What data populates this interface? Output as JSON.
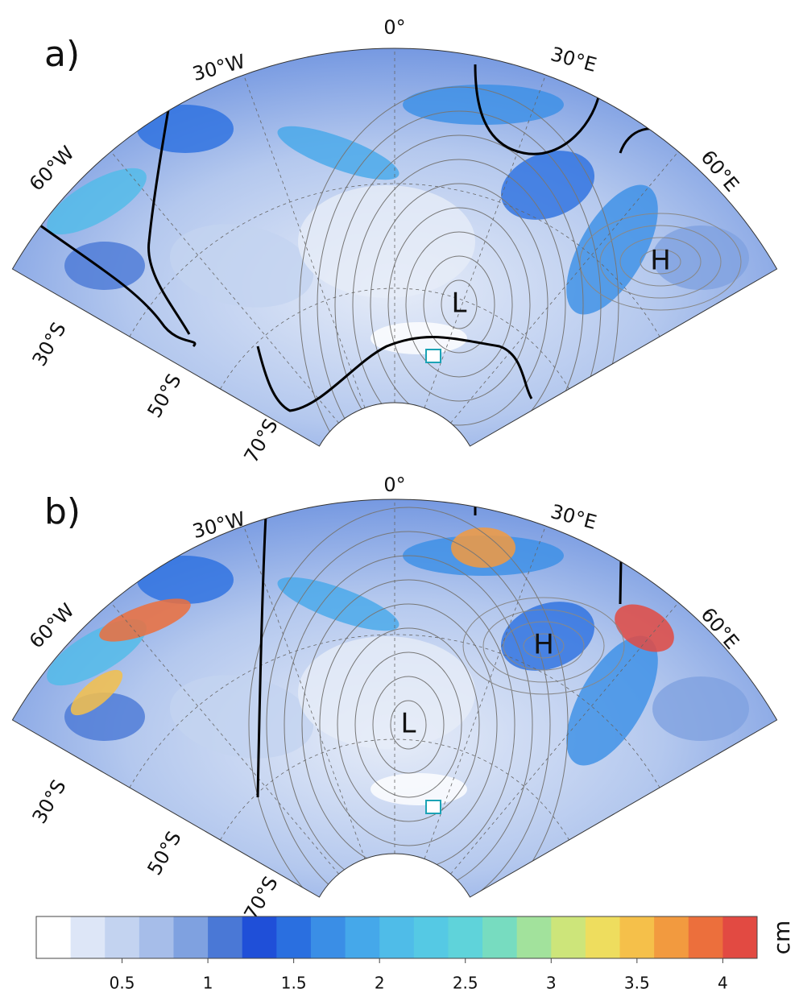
{
  "panels": [
    {
      "label": "a)",
      "lon_labels": [
        "60°W",
        "30°W",
        "0°",
        "30°E",
        "60°E"
      ],
      "lat_labels": [
        "30°S",
        "50°S",
        "70°S"
      ],
      "low": "L",
      "high": "H"
    },
    {
      "label": "b)",
      "lon_labels": [
        "60°W",
        "30°W",
        "0°",
        "30°E",
        "60°E"
      ],
      "lat_labels": [
        "30°S",
        "50°S",
        "70°S"
      ],
      "low": "L",
      "high": "H"
    }
  ],
  "colorbar": {
    "type": "colorbar",
    "unit": "cm",
    "xlim": [
      0,
      4.2
    ],
    "xticks": [
      0.5,
      1,
      1.5,
      2,
      2.5,
      3,
      3.5,
      4
    ],
    "colors": [
      "#ffffff",
      "#dde6f7",
      "#c3d3f0",
      "#a6bde9",
      "#7fa1e0",
      "#4a78d6",
      "#1f4fd8",
      "#2a6fe0",
      "#3a8ee6",
      "#45a8ea",
      "#4fbce8",
      "#55c9e4",
      "#5fd3da",
      "#77dcc0",
      "#a2e29c",
      "#cde57a",
      "#eedd5e",
      "#f5c04a",
      "#f29a3f",
      "#ec6f3c",
      "#e24a42"
    ]
  }
}
